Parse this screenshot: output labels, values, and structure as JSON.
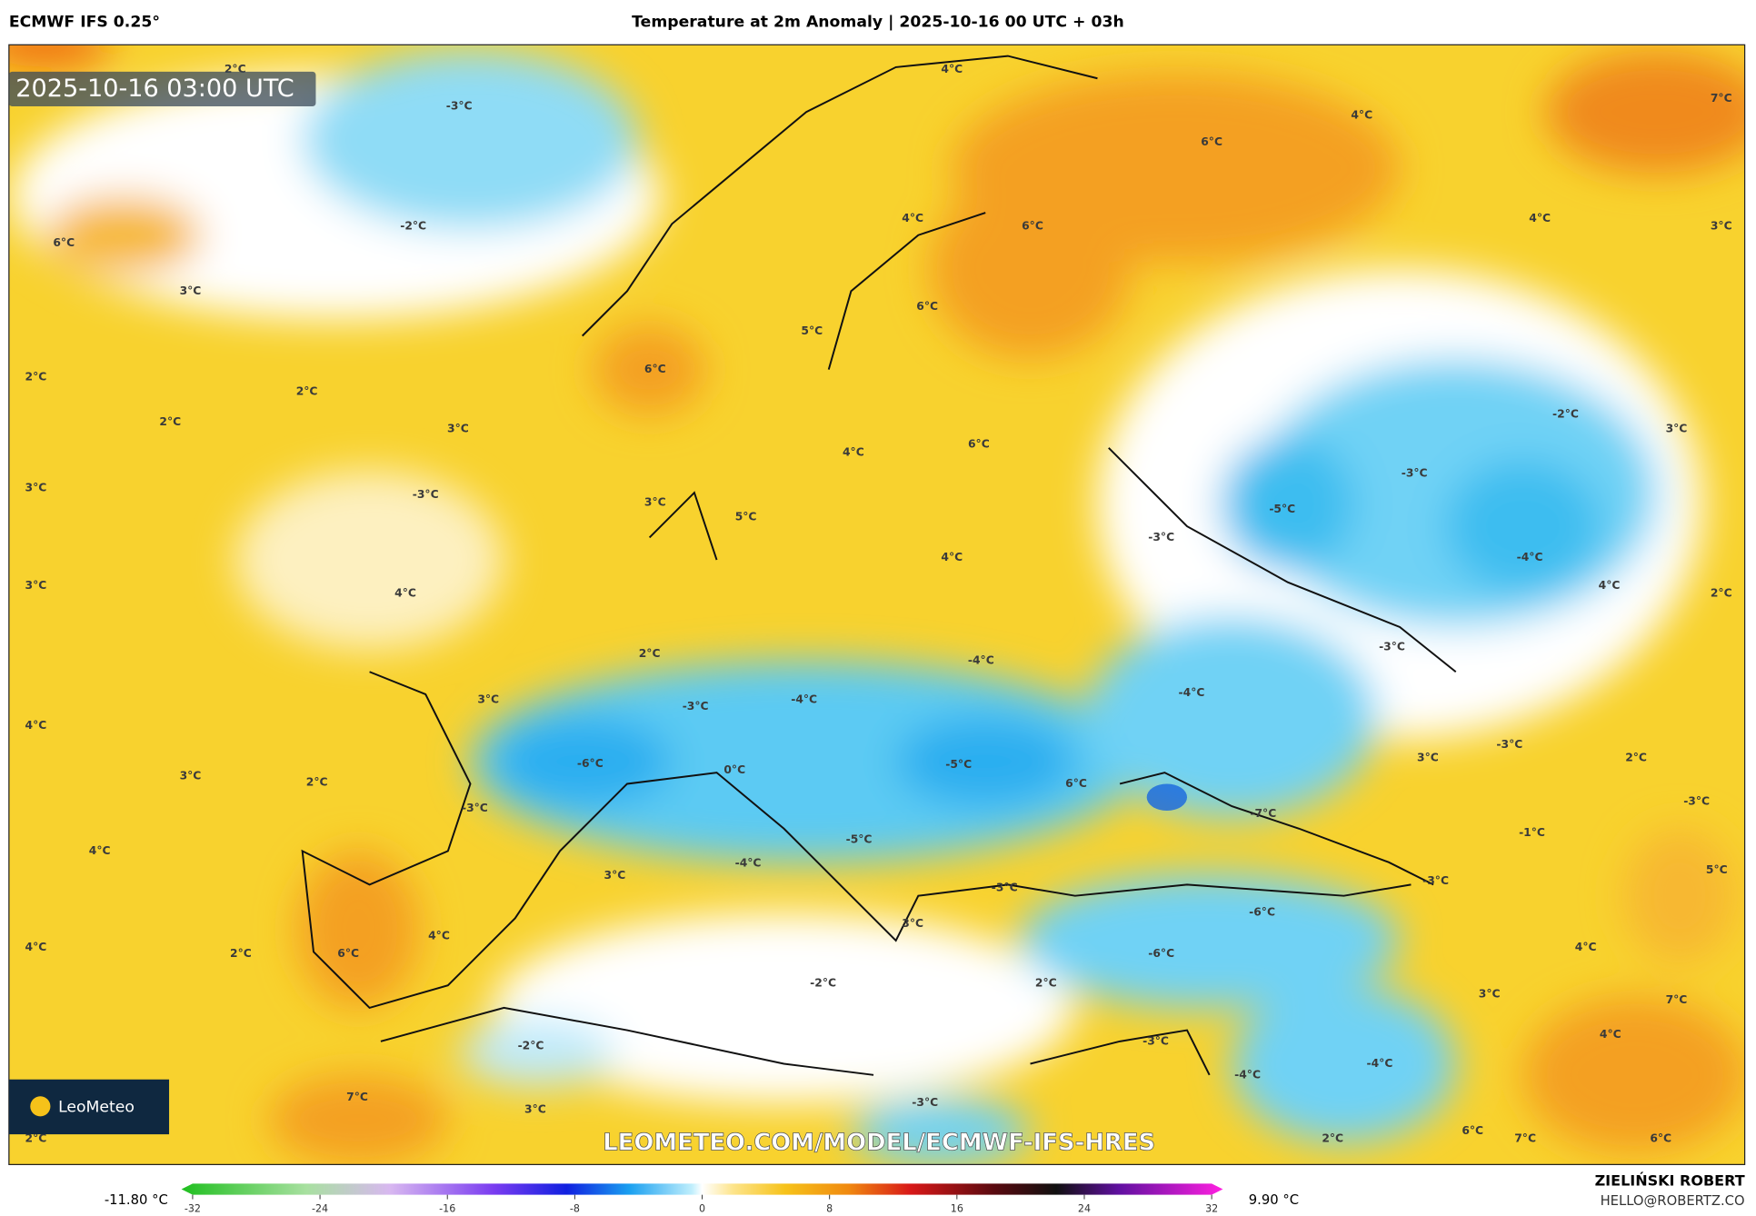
{
  "header": {
    "model": "ECMWF IFS 0.25°",
    "title": "Temperature at 2m Anomaly | 2025-10-16 00 UTC + 03h"
  },
  "map": {
    "timestamp": "2025-10-16 03:00 UTC",
    "labels": [
      "2°C",
      "-3°C",
      "4°C",
      "4°C",
      "7°C",
      "6°C",
      "-2°C",
      "6°C",
      "4°C",
      "6°C",
      "4°C",
      "3°C",
      "3°C",
      "6°C",
      "5°C",
      "6°C",
      "2°C",
      "2°C",
      "2°C",
      "3°C",
      "-2°C",
      "3°C",
      "6°C",
      "4°C",
      "3°C",
      "-3°C",
      "-3°C",
      "3°C",
      "-5°C",
      "5°C",
      "-3°C",
      "4°C",
      "-4°C",
      "3°C",
      "4°C",
      "4°C",
      "2°C",
      "-3°C",
      "2°C",
      "-4°C",
      "-4°C",
      "-3°C",
      "3°C",
      "-4°C",
      "4°C",
      "-3°C",
      "3°C",
      "2°C",
      "-6°C",
      "0°C",
      "-5°C",
      "3°C",
      "2°C",
      "6°C",
      "-3°C",
      "-7°C",
      "-3°C",
      "-1°C",
      "4°C",
      "-5°C",
      "-4°C",
      "3°C",
      "5°C",
      "-3°C",
      "-3°C",
      "-6°C",
      "3°C",
      "4°C",
      "4°C",
      "2°C",
      "6°C",
      "-6°C",
      "4°C",
      "-2°C",
      "2°C",
      "3°C",
      "7°C",
      "4°C",
      "-2°C",
      "-3°C",
      "-4°C",
      "-4°C",
      "7°C",
      "-3°C",
      "3°C",
      "2°C",
      "2°C",
      "6°C",
      "7°C",
      "6°C"
    ],
    "logo": "LeoMeteo",
    "url": "LEOMETEO.COM/MODEL/ECMWF-IFS-HRES"
  },
  "colorbar": {
    "min_label": "-11.80 °C",
    "max_label": "9.90 °C",
    "range": [
      -32,
      32
    ],
    "ticks": [
      -32,
      -24,
      -16,
      -8,
      0,
      8,
      16,
      24,
      32
    ]
  },
  "footer": {
    "author": "ZIELIŃSKI ROBERT",
    "email": "HELLO@ROBERTZ.CO"
  }
}
